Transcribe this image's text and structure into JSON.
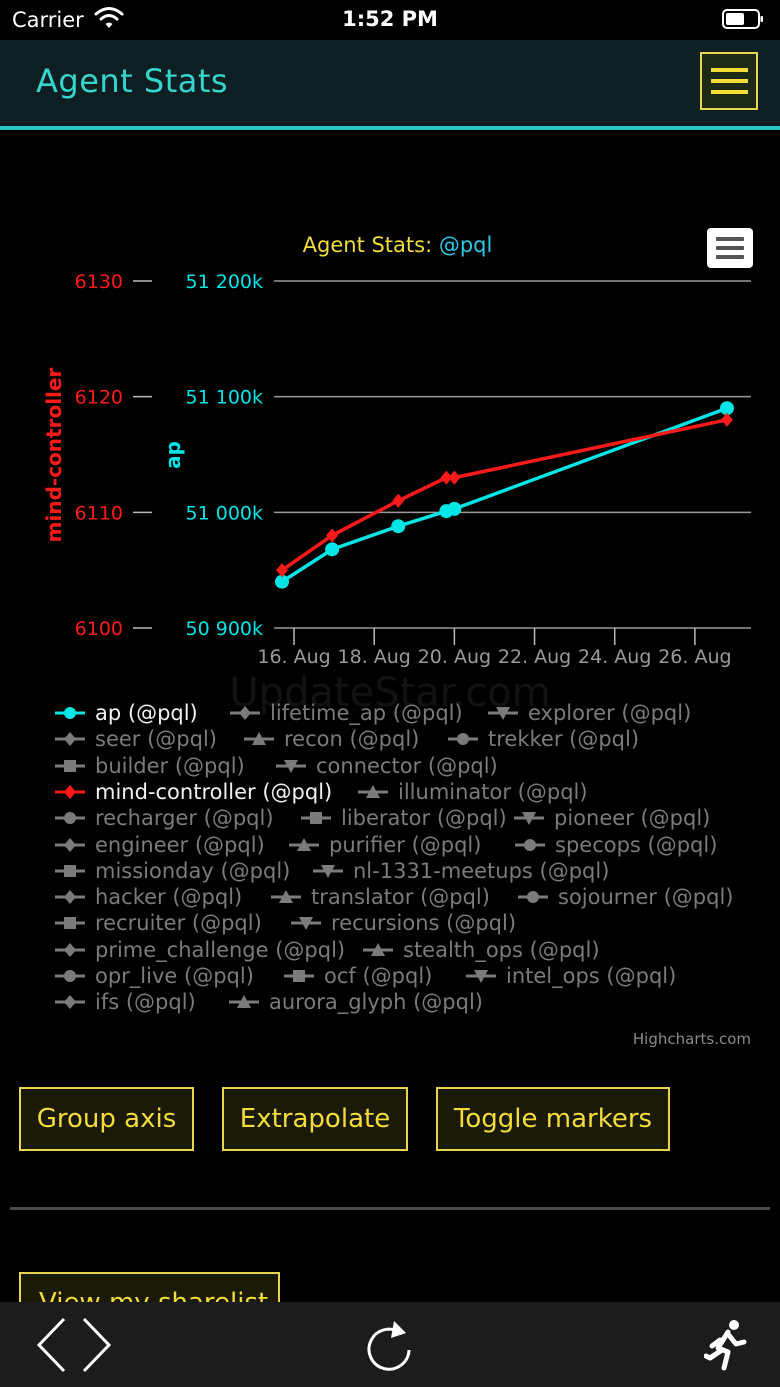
{
  "status_bar": {
    "carrier": "Carrier",
    "time": "1:52 PM"
  },
  "header": {
    "title": "Agent Stats",
    "menu_icon": "hamburger-menu-icon"
  },
  "chart_data": {
    "type": "line",
    "title_prefix": "Agent Stats: ",
    "title_handle": "@pql",
    "x_tick_labels": [
      "16. Aug",
      "18. Aug",
      "20. Aug",
      "22. Aug",
      "24. Aug",
      "26. Aug"
    ],
    "xlim": [
      "2017-08-15.75",
      "2017-08-27.9"
    ],
    "axes": [
      {
        "name": "ap",
        "label": "ap",
        "color": "#00e5e5",
        "ylim": [
          50900000,
          51200000
        ],
        "tick_labels": [
          "50 900k",
          "51 000k",
          "51 100k",
          "51 200k"
        ],
        "tick_values": [
          50900000,
          51000000,
          51100000,
          51200000
        ]
      },
      {
        "name": "mind-controller",
        "label": "mind-controller",
        "color": "#ff1a1a",
        "ylim": [
          6100,
          6130
        ],
        "tick_labels": [
          "6100",
          "6110",
          "6120",
          "6130"
        ],
        "tick_values": [
          6100,
          6110,
          6120,
          6130
        ]
      }
    ],
    "series": [
      {
        "name": "ap (@pql)",
        "axis": 0,
        "color": "#00e5e5",
        "x": [
          15.7,
          16.95,
          18.6,
          19.8,
          20.0,
          26.8
        ],
        "y": [
          50940000,
          50968000,
          50988000,
          51001000,
          51003000,
          51090000
        ]
      },
      {
        "name": "mind-controller (@pql)",
        "axis": 1,
        "color": "#ff1a1a",
        "x": [
          15.7,
          16.95,
          18.6,
          19.8,
          20.0,
          26.8
        ],
        "y": [
          6105,
          6108,
          6111,
          6113,
          6113,
          6118
        ]
      }
    ],
    "credits": "Highcharts.com",
    "watermark": "UpdateStar.com"
  },
  "legend": {
    "items": [
      {
        "label": "ap (@pql)",
        "symbol": "circle",
        "active": true,
        "color": "#00e5e5"
      },
      {
        "label": "lifetime_ap (@pql)",
        "symbol": "diamond",
        "active": false
      },
      {
        "label": "explorer (@pql)",
        "symbol": "triangle-down",
        "active": false
      },
      {
        "label": "seer (@pql)",
        "symbol": "diamond",
        "active": false
      },
      {
        "label": "recon (@pql)",
        "symbol": "triangle",
        "active": false
      },
      {
        "label": "trekker (@pql)",
        "symbol": "circle",
        "active": false
      },
      {
        "label": "builder (@pql)",
        "symbol": "square",
        "active": false
      },
      {
        "label": "connector (@pql)",
        "symbol": "triangle-down",
        "active": false
      },
      {
        "label": "mind-controller (@pql)",
        "symbol": "diamond",
        "active": true,
        "color": "#ff1a1a"
      },
      {
        "label": "illuminator (@pql)",
        "symbol": "triangle",
        "active": false
      },
      {
        "label": "recharger (@pql)",
        "symbol": "circle",
        "active": false
      },
      {
        "label": "liberator (@pql)",
        "symbol": "square",
        "active": false
      },
      {
        "label": "pioneer (@pql)",
        "symbol": "triangle-down",
        "active": false
      },
      {
        "label": "engineer (@pql)",
        "symbol": "diamond",
        "active": false
      },
      {
        "label": "purifier (@pql)",
        "symbol": "triangle",
        "active": false
      },
      {
        "label": "specops (@pql)",
        "symbol": "circle",
        "active": false
      },
      {
        "label": "missionday (@pql)",
        "symbol": "square",
        "active": false
      },
      {
        "label": "nl-1331-meetups (@pql)",
        "symbol": "triangle-down",
        "active": false
      },
      {
        "label": "hacker (@pql)",
        "symbol": "diamond",
        "active": false
      },
      {
        "label": "translator (@pql)",
        "symbol": "triangle",
        "active": false
      },
      {
        "label": "sojourner (@pql)",
        "symbol": "circle",
        "active": false
      },
      {
        "label": "recruiter (@pql)",
        "symbol": "square",
        "active": false
      },
      {
        "label": "recursions (@pql)",
        "symbol": "triangle-down",
        "active": false
      },
      {
        "label": "prime_challenge (@pql)",
        "symbol": "diamond",
        "active": false
      },
      {
        "label": "stealth_ops (@pql)",
        "symbol": "triangle",
        "active": false
      },
      {
        "label": "opr_live (@pql)",
        "symbol": "circle",
        "active": false
      },
      {
        "label": "ocf (@pql)",
        "symbol": "square",
        "active": false
      },
      {
        "label": "intel_ops (@pql)",
        "symbol": "triangle-down",
        "active": false
      },
      {
        "label": "ifs (@pql)",
        "symbol": "diamond",
        "active": false
      },
      {
        "label": "aurora_glyph (@pql)",
        "symbol": "triangle",
        "active": false
      }
    ]
  },
  "buttons": {
    "group_axis": "Group axis",
    "extrapolate": "Extrapolate",
    "toggle_markers": "Toggle markers",
    "view_sharelist": "View my sharelist"
  },
  "toolbar": {
    "back_icon": "chevron-left-icon",
    "forward_icon": "chevron-right-icon",
    "reload_icon": "reload-icon",
    "run_icon": "running-person-icon"
  },
  "colors": {
    "accent_teal": "#33d7cc",
    "accent_yellow": "#f3dd39",
    "ap_cyan": "#00e5e5",
    "mind_red": "#ff1a1a"
  }
}
